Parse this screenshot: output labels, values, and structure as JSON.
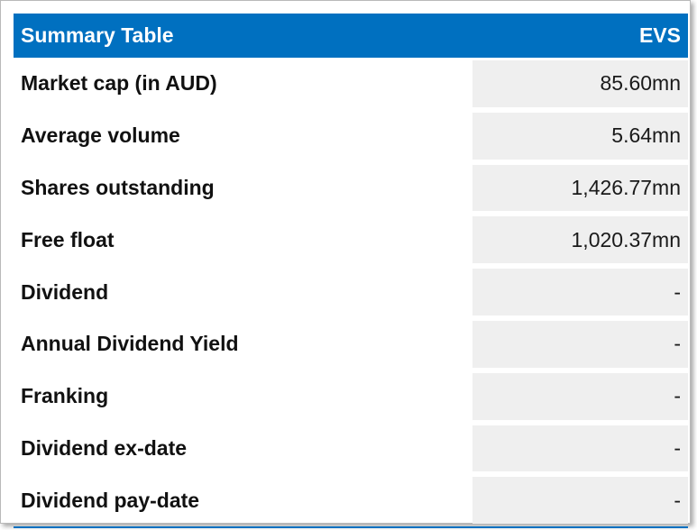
{
  "colors": {
    "header_bg": "#0070c0",
    "header_text": "#ffffff",
    "value_cell_bg": "#efefef"
  },
  "table": {
    "title": "Summary Table",
    "ticker": "EVS",
    "rows": [
      {
        "label": "Market cap (in AUD)",
        "value": "85.60mn"
      },
      {
        "label": "Average volume",
        "value": "5.64mn"
      },
      {
        "label": "Shares outstanding",
        "value": "1,426.77mn"
      },
      {
        "label": "Free float",
        "value": "1,020.37mn"
      },
      {
        "label": "Dividend",
        "value": "-"
      },
      {
        "label": "Annual Dividend Yield",
        "value": "-"
      },
      {
        "label": "Franking",
        "value": "-"
      },
      {
        "label": "Dividend ex-date",
        "value": "-"
      },
      {
        "label": "Dividend pay-date",
        "value": "-"
      }
    ]
  }
}
